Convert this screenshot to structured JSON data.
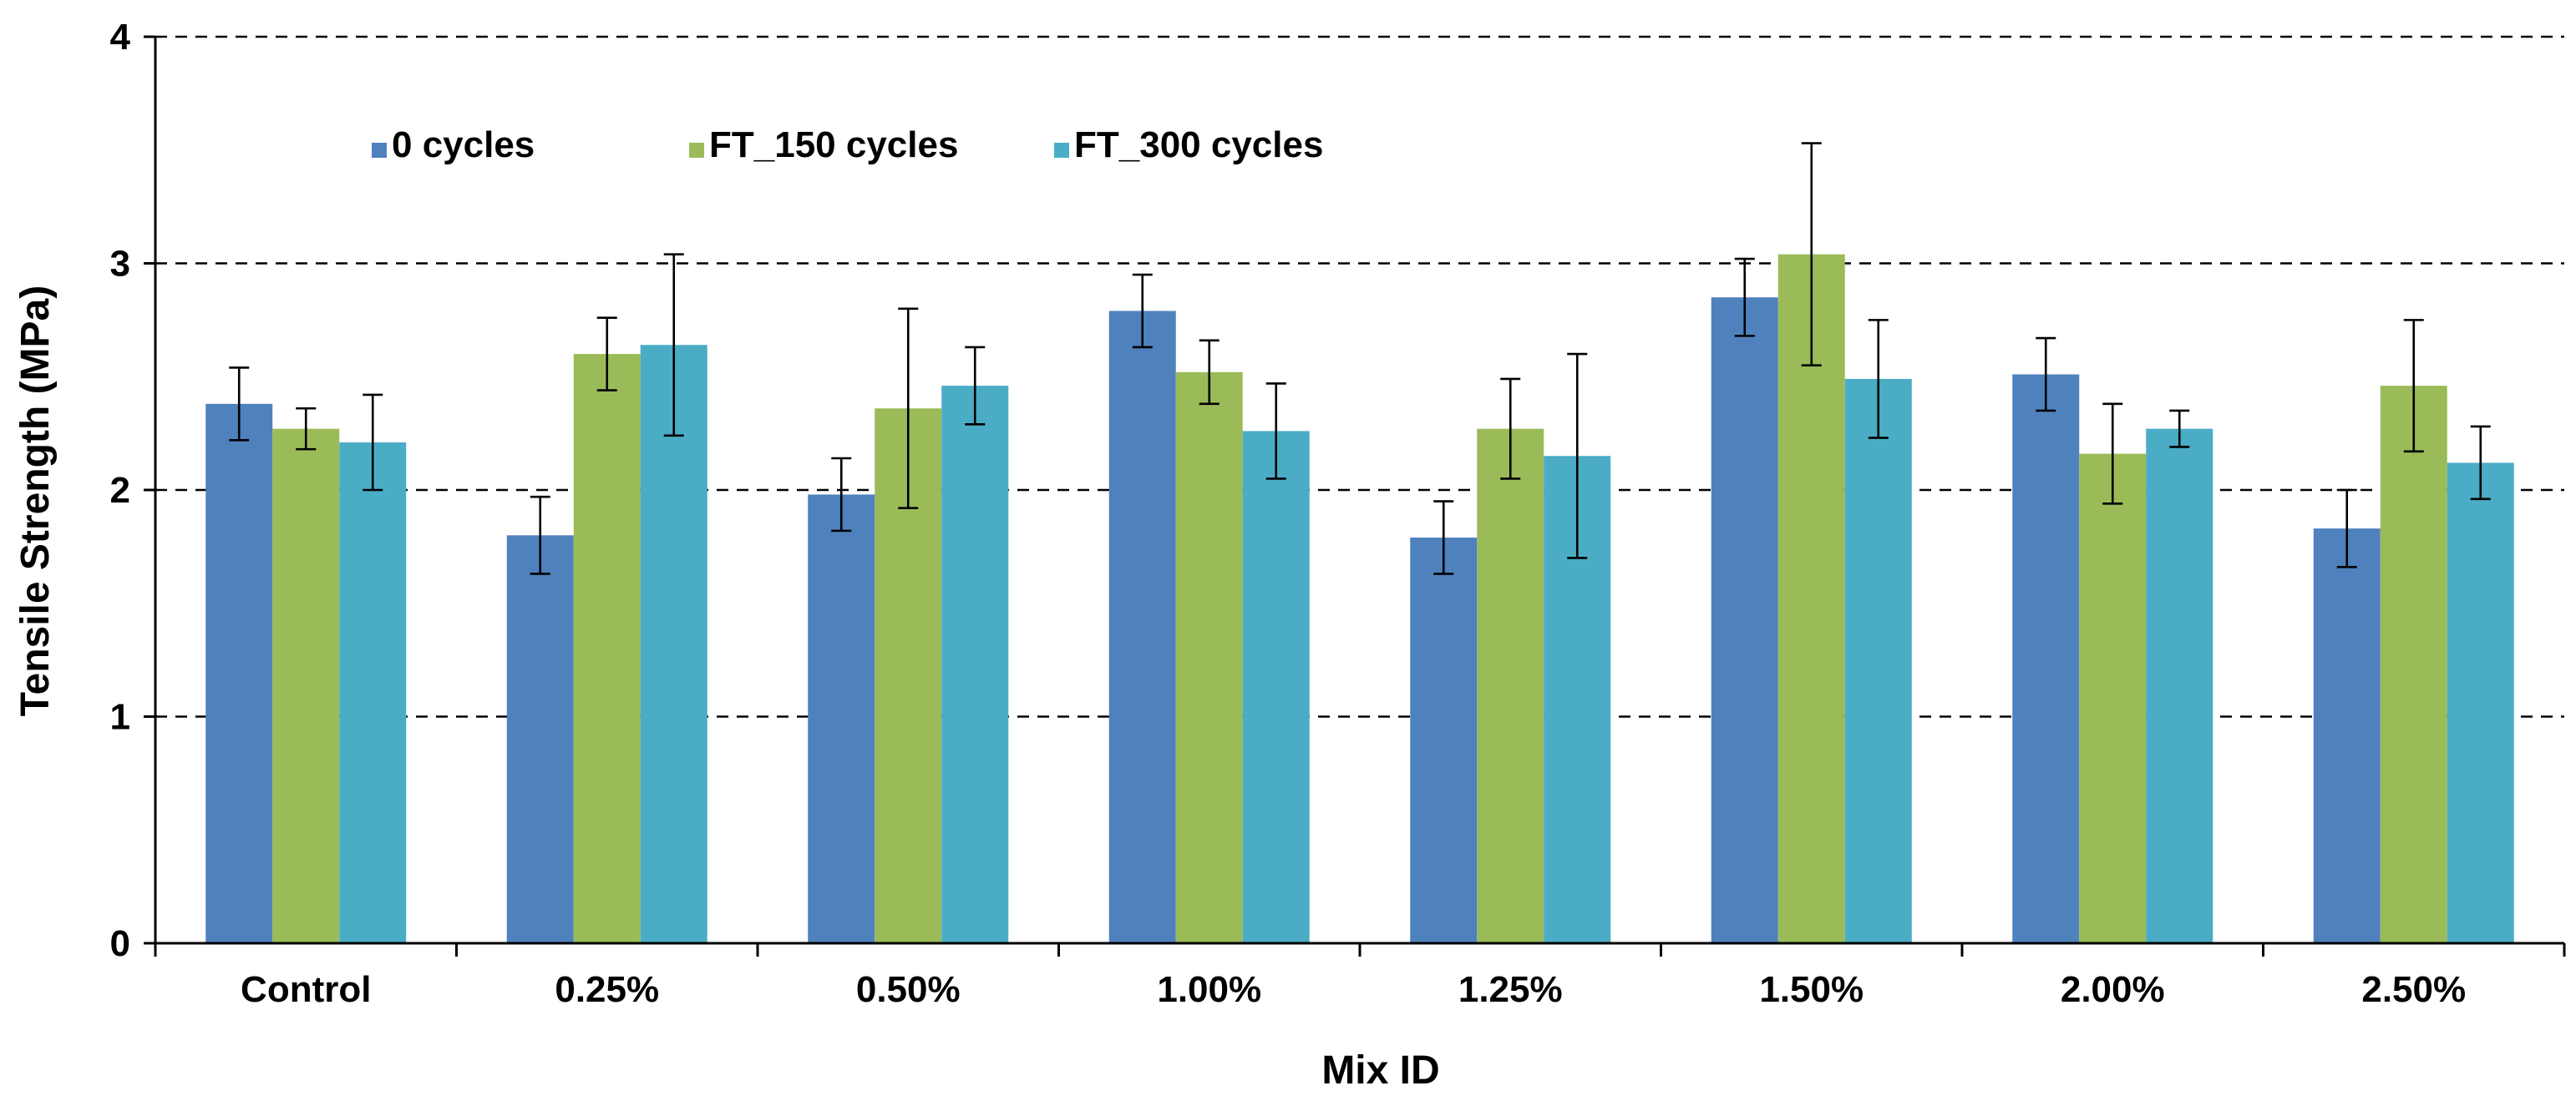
{
  "chart_data": {
    "type": "bar",
    "title": "",
    "xlabel": "Mix ID",
    "ylabel": "Tensile Strength (MPa)",
    "ylim": [
      0,
      4
    ],
    "yticks": [
      0,
      1,
      2,
      3,
      4
    ],
    "grid": true,
    "legend_position": "top-left",
    "categories": [
      "Control",
      "0.25%",
      "0.50%",
      "1.00%",
      "1.25%",
      "1.50%",
      "2.00%",
      "2.50%"
    ],
    "series": [
      {
        "name": "0 cycles",
        "color": "#4f81bd",
        "values": [
          2.38,
          1.8,
          1.98,
          2.79,
          1.79,
          2.85,
          2.51,
          1.83
        ],
        "error": [
          0.16,
          0.17,
          0.16,
          0.16,
          0.16,
          0.17,
          0.16,
          0.17
        ]
      },
      {
        "name": "FT_150 cycles",
        "color": "#9bbb59",
        "values": [
          2.27,
          2.6,
          2.36,
          2.52,
          2.27,
          3.04,
          2.16,
          2.46
        ],
        "error": [
          0.09,
          0.16,
          0.44,
          0.14,
          0.22,
          0.49,
          0.22,
          0.29
        ]
      },
      {
        "name": "FT_300 cycles",
        "color": "#4bacc6",
        "values": [
          2.21,
          2.64,
          2.46,
          2.26,
          2.15,
          2.49,
          2.27,
          2.12
        ],
        "error": [
          0.21,
          0.4,
          0.17,
          0.21,
          0.45,
          0.26,
          0.08,
          0.16
        ]
      }
    ]
  }
}
